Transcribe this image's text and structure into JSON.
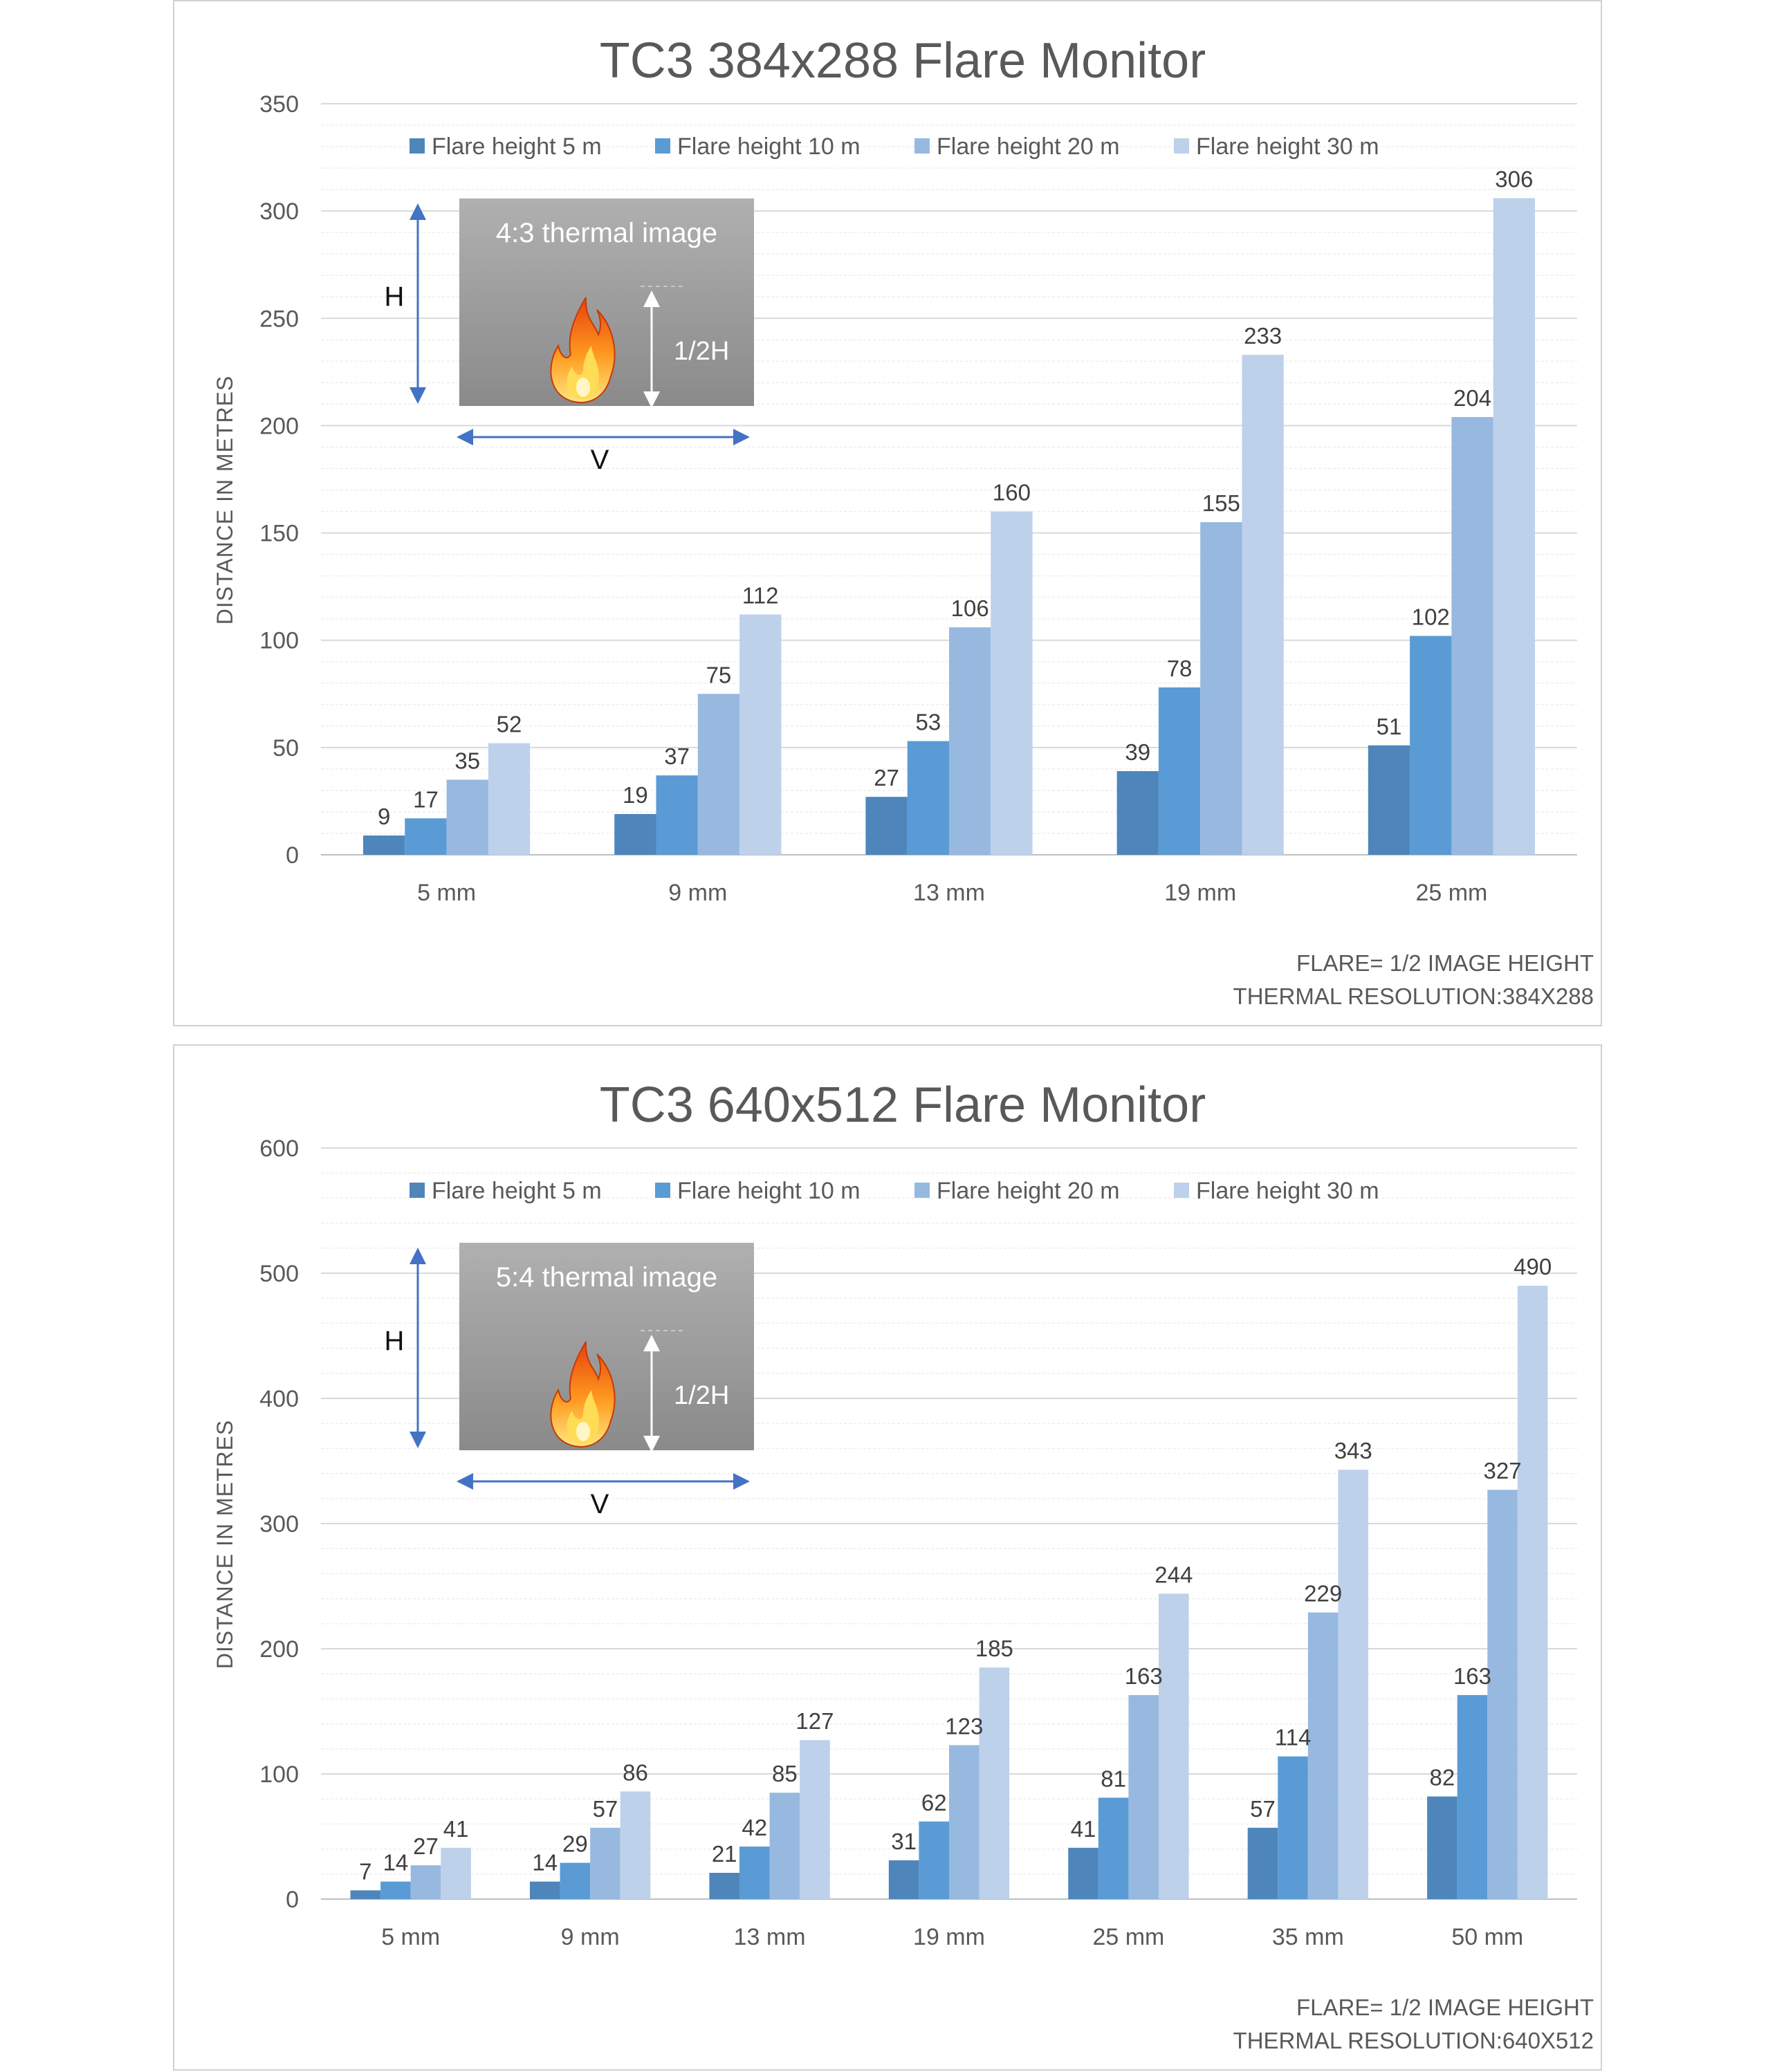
{
  "colors": {
    "series": [
      "#4e86bb",
      "#5a9bd5",
      "#97b9e0",
      "#bdd1eb"
    ],
    "grid": "#e3e3e3",
    "axis": "#bfbfbf",
    "arrow": "#4472c4",
    "inset_top": "#b0b0b0",
    "inset_bottom": "#8a8a8a"
  },
  "chart_data": [
    {
      "type": "bar",
      "title": "TC3 384x288 Flare Monitor",
      "ylabel": "DISTANCE IN METRES",
      "xlabel": "",
      "ylim": [
        0,
        350
      ],
      "yticks": [
        0,
        50,
        100,
        150,
        200,
        250,
        300,
        350
      ],
      "grid": true,
      "legend_position": "top",
      "categories": [
        "5 mm",
        "9 mm",
        "13 mm",
        "19 mm",
        "25 mm"
      ],
      "series": [
        {
          "name": "Flare height 5 m",
          "values": [
            9,
            19,
            27,
            39,
            51
          ]
        },
        {
          "name": "Flare height 10 m",
          "values": [
            17,
            37,
            53,
            78,
            102
          ]
        },
        {
          "name": "Flare height 20 m",
          "values": [
            35,
            75,
            106,
            155,
            204
          ]
        },
        {
          "name": "Flare height 30 m",
          "values": [
            52,
            112,
            160,
            233,
            306
          ]
        }
      ],
      "annotations": [
        "FLARE= 1/2 IMAGE HEIGHT",
        "THERMAL RESOLUTION:384X288"
      ],
      "inset": {
        "title": "4:3 thermal image",
        "h_label": "H",
        "v_label": "V",
        "half_label": "1/2H",
        "icon": "flame-icon"
      }
    },
    {
      "type": "bar",
      "title": "TC3 640x512 Flare Monitor",
      "ylabel": "DISTANCE IN METRES",
      "xlabel": "",
      "ylim": [
        0,
        600
      ],
      "yticks": [
        0,
        100,
        200,
        300,
        400,
        500,
        600
      ],
      "grid": true,
      "legend_position": "top",
      "categories": [
        "5 mm",
        "9 mm",
        "13 mm",
        "19 mm",
        "25 mm",
        "35 mm",
        "50 mm"
      ],
      "series": [
        {
          "name": "Flare height 5 m",
          "values": [
            7,
            14,
            21,
            31,
            41,
            57,
            82
          ]
        },
        {
          "name": "Flare height 10 m",
          "values": [
            14,
            29,
            42,
            62,
            81,
            114,
            163
          ]
        },
        {
          "name": "Flare height 20 m",
          "values": [
            27,
            57,
            85,
            123,
            163,
            229,
            327
          ]
        },
        {
          "name": "Flare height 30 m",
          "values": [
            41,
            86,
            127,
            185,
            244,
            343,
            490
          ]
        }
      ],
      "annotations": [
        "FLARE= 1/2 IMAGE HEIGHT",
        "THERMAL RESOLUTION:640X512"
      ],
      "inset": {
        "title": "5:4 thermal image",
        "h_label": "H",
        "v_label": "V",
        "half_label": "1/2H",
        "icon": "flame-icon"
      }
    }
  ]
}
